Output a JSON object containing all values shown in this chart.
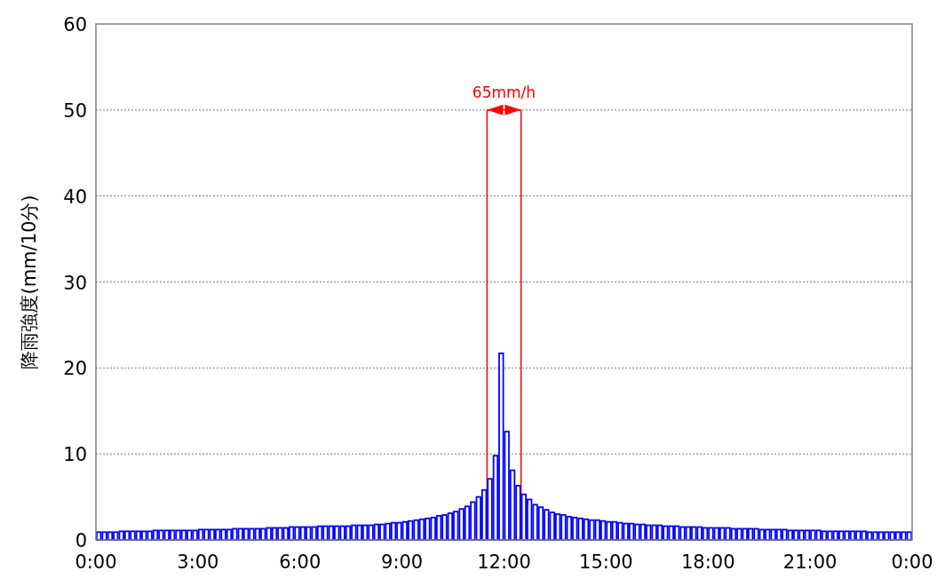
{
  "chart_data": {
    "type": "histogram",
    "ylabel": "降雨強度(mm/10分)",
    "bins": [
      0,
      0.167,
      0.333,
      0.5,
      0.667,
      0.833,
      1,
      1.167,
      1.333,
      1.5,
      1.667,
      1.833,
      2,
      2.167,
      2.333,
      2.5,
      2.667,
      2.833,
      3,
      3.167,
      3.333,
      3.5,
      3.667,
      3.833,
      4,
      4.167,
      4.333,
      4.5,
      4.667,
      4.833,
      5,
      5.167,
      5.333,
      5.5,
      5.667,
      5.833,
      6,
      6.167,
      6.333,
      6.5,
      6.667,
      6.833,
      7,
      7.167,
      7.333,
      7.5,
      7.667,
      7.833,
      8,
      8.167,
      8.333,
      8.5,
      8.667,
      8.833,
      9,
      9.167,
      9.333,
      9.5,
      9.667,
      9.833,
      10,
      10.167,
      10.333,
      10.5,
      10.667,
      10.833,
      11,
      11.167,
      11.333,
      11.5,
      11.667,
      11.833,
      12,
      12.167,
      12.333,
      12.5,
      12.667,
      12.833,
      13,
      13.167,
      13.333,
      13.5,
      13.667,
      13.833,
      14,
      14.167,
      14.333,
      14.5,
      14.667,
      14.833,
      15,
      15.167,
      15.333,
      15.5,
      15.667,
      15.833,
      16,
      16.167,
      16.333,
      16.5,
      16.667,
      16.833,
      17,
      17.167,
      17.333,
      17.5,
      17.667,
      17.833,
      18,
      18.167,
      18.333,
      18.5,
      18.667,
      18.833,
      19,
      19.167,
      19.333,
      19.5,
      19.667,
      19.833,
      20,
      20.167,
      20.333,
      20.5,
      20.667,
      20.833,
      21,
      21.167,
      21.333,
      21.5,
      21.667,
      21.833,
      22,
      22.167,
      22.333,
      22.5,
      22.667,
      22.833,
      23,
      23.167,
      23.333,
      23.5,
      23.667,
      23.833,
      24
    ],
    "values": [
      0.9,
      0.9,
      0.9,
      0.9,
      1.0,
      1.0,
      1.0,
      1.0,
      1.0,
      1.0,
      1.1,
      1.1,
      1.1,
      1.1,
      1.1,
      1.1,
      1.1,
      1.1,
      1.2,
      1.2,
      1.2,
      1.2,
      1.2,
      1.2,
      1.3,
      1.3,
      1.3,
      1.3,
      1.3,
      1.3,
      1.4,
      1.4,
      1.4,
      1.4,
      1.5,
      1.5,
      1.5,
      1.5,
      1.5,
      1.6,
      1.6,
      1.6,
      1.6,
      1.6,
      1.6,
      1.7,
      1.7,
      1.7,
      1.7,
      1.8,
      1.8,
      1.9,
      2.0,
      2.0,
      2.1,
      2.2,
      2.3,
      2.4,
      2.5,
      2.6,
      2.8,
      2.9,
      3.1,
      3.3,
      3.6,
      3.9,
      4.4,
      5.0,
      5.8,
      7.1,
      9.8,
      21.7,
      12.6,
      8.1,
      6.3,
      5.3,
      4.7,
      4.1,
      3.8,
      3.5,
      3.2,
      3.0,
      2.9,
      2.7,
      2.6,
      2.5,
      2.4,
      2.3,
      2.3,
      2.2,
      2.1,
      2.1,
      2.0,
      1.9,
      1.9,
      1.8,
      1.8,
      1.7,
      1.7,
      1.7,
      1.6,
      1.6,
      1.6,
      1.5,
      1.5,
      1.5,
      1.5,
      1.4,
      1.4,
      1.4,
      1.4,
      1.4,
      1.3,
      1.3,
      1.3,
      1.3,
      1.3,
      1.2,
      1.2,
      1.2,
      1.2,
      1.2,
      1.1,
      1.1,
      1.1,
      1.1,
      1.1,
      1.1,
      1.0,
      1.0,
      1.0,
      1.0,
      1.0,
      1.0,
      1.0,
      1.0,
      0.9,
      0.9,
      0.9,
      0.9,
      0.9,
      0.9,
      0.9,
      0.9
    ],
    "color": "#0000ff",
    "xlim": [
      0,
      24
    ],
    "xticks": [
      {
        "value": 0,
        "label": "0:00"
      },
      {
        "value": 3,
        "label": "3:00"
      },
      {
        "value": 6,
        "label": "6:00"
      },
      {
        "value": 9,
        "label": "9:00"
      },
      {
        "value": 12,
        "label": "12:00"
      },
      {
        "value": 15,
        "label": "15:00"
      },
      {
        "value": 18,
        "label": "18:00"
      },
      {
        "value": 21,
        "label": "21:00"
      },
      {
        "value": 24,
        "label": "0:00"
      }
    ],
    "ylim": [
      0,
      60
    ],
    "yticks": [
      0,
      10,
      20,
      30,
      40,
      50,
      60
    ],
    "grid": "y",
    "ref_lines": [
      {
        "axis": "x",
        "value": 11.5,
        "color": "#ff0000"
      },
      {
        "axis": "x",
        "value": 12.5,
        "color": "#ff0000"
      }
    ],
    "annotations": [
      "65mm/h"
    ]
  }
}
